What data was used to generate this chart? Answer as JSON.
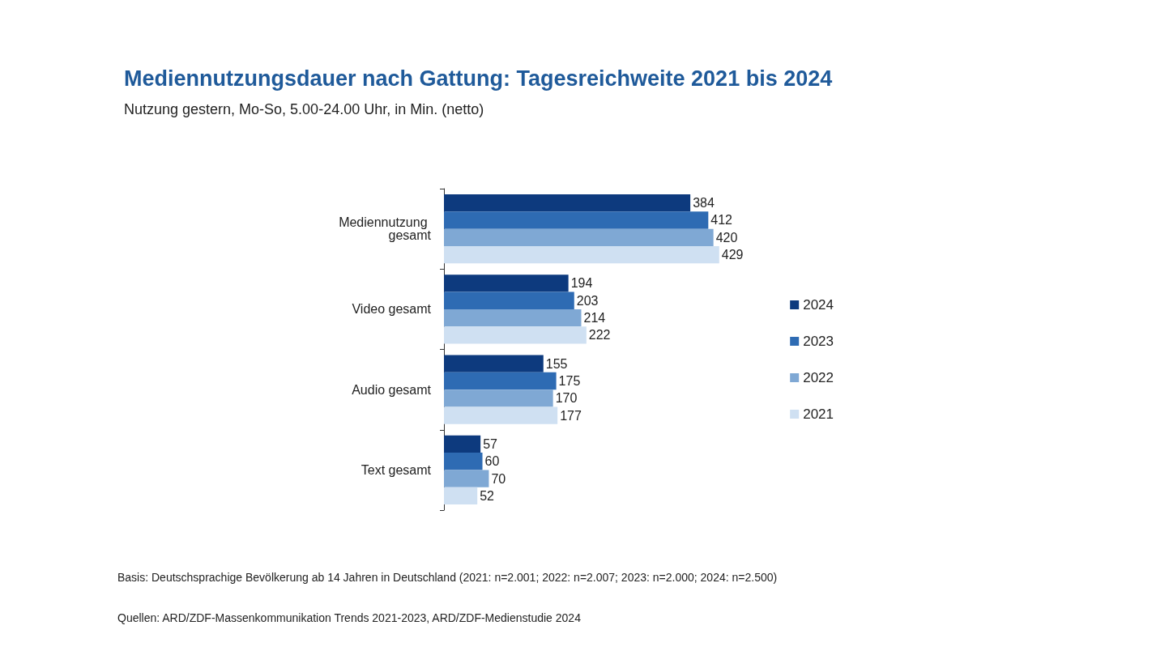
{
  "chart_data": {
    "type": "bar",
    "orientation": "horizontal",
    "title": "Mediennutzungsdauer nach Gattung: Tagesreichweite 2021 bis 2024",
    "subtitle": "Nutzung gestern, Mo-So, 5.00-24.00 Uhr, in Min. (netto)",
    "categories": [
      "Mediennutzung gesamt",
      "Video gesamt",
      "Audio gesamt",
      "Text gesamt"
    ],
    "series": [
      {
        "name": "2024",
        "color": "#0d3a7e",
        "values": [
          384,
          194,
          155,
          57
        ]
      },
      {
        "name": "2023",
        "color": "#2e6bb3",
        "values": [
          412,
          203,
          175,
          60
        ]
      },
      {
        "name": "2022",
        "color": "#7fa8d4",
        "values": [
          420,
          214,
          170,
          70
        ]
      },
      {
        "name": "2021",
        "color": "#cfe0f2",
        "values": [
          429,
          222,
          177,
          52
        ]
      }
    ],
    "data_labels": true,
    "legend": "right",
    "annotations": [
      "Basis: Deutschsprachige Bevölkerung ab 14 Jahren in Deutschland (2021: n=2.001; 2022: n=2.007; 2023: n=2.000; 2024: n=2.500)",
      "Quellen: ARD/ZDF-Massenkommunikation Trends 2021-2023, ARD/ZDF-Medienstudie 2024"
    ]
  }
}
